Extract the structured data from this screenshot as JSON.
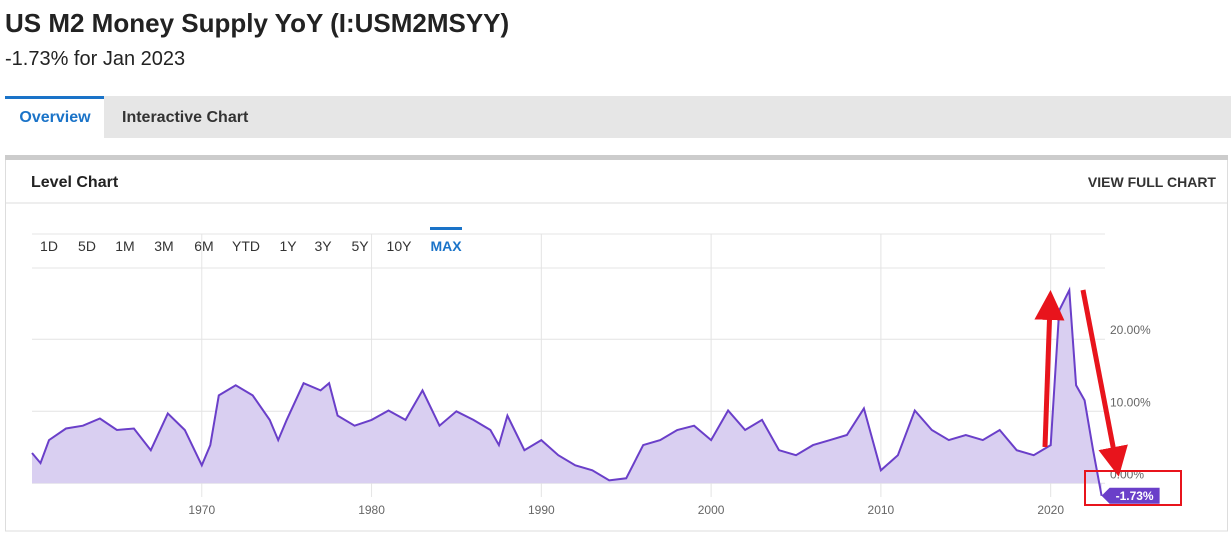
{
  "header": {
    "title": "US M2 Money Supply YoY (I:USM2MSYY)",
    "subtitle": "-1.73% for Jan 2023"
  },
  "tabs": [
    "Overview",
    "Interactive Chart"
  ],
  "panel": {
    "title": "Level Chart",
    "action": "VIEW FULL CHART"
  },
  "ranges": [
    "1D",
    "5D",
    "1M",
    "3M",
    "6M",
    "YTD",
    "1Y",
    "3Y",
    "5Y",
    "10Y",
    "MAX"
  ],
  "chart_data": {
    "type": "area",
    "color": "#6a3fc9",
    "fill": "#d9cff1",
    "x": [
      1960.0,
      1960.5,
      1961,
      1962,
      1963,
      1964,
      1965,
      1966,
      1967,
      1968,
      1969,
      1970,
      1970.5,
      1971,
      1972,
      1973,
      1974,
      1974.5,
      1975,
      1976,
      1977,
      1977.5,
      1978,
      1979,
      1980,
      1981,
      1982,
      1983,
      1984,
      1985,
      1986,
      1987,
      1987.5,
      1988,
      1989,
      1990,
      1991,
      1992,
      1993,
      1994,
      1995,
      1996,
      1997,
      1998,
      1999,
      2000,
      2001,
      2002,
      2003,
      2004,
      2005,
      2006,
      2007,
      2008,
      2009,
      2010,
      2011,
      2012,
      2013,
      2014,
      2015,
      2016,
      2017,
      2018,
      2019,
      2020,
      2020.5,
      2021.1,
      2021.5,
      2022,
      2022.5,
      2023.0
    ],
    "values": [
      4.2,
      2.8,
      6,
      7.6,
      8,
      9,
      7.4,
      7.6,
      4.6,
      9.7,
      7.4,
      2.5,
      5.3,
      12.2,
      13.6,
      12.2,
      8.8,
      6,
      8.8,
      13.9,
      12.9,
      13.9,
      9.4,
      8,
      8.8,
      10.1,
      8.8,
      12.9,
      8,
      10,
      8.8,
      7.4,
      5.3,
      9.4,
      4.6,
      6,
      3.9,
      2.5,
      1.8,
      0.4,
      0.7,
      5.3,
      6,
      7.4,
      8,
      6,
      10.1,
      7.4,
      8.8,
      4.6,
      3.9,
      5.3,
      6,
      6.7,
      10.4,
      1.8,
      3.9,
      10.1,
      7.4,
      6,
      6.7,
      6,
      7.4,
      4.6,
      3.9,
      5.3,
      24,
      26.8,
      13.6,
      11.5,
      4.6,
      -1.73
    ],
    "xlim": [
      1960,
      2023.2
    ],
    "xticks": [
      1970,
      1980,
      1990,
      2000,
      2010,
      2020
    ],
    "ylim": [
      -1.9,
      34.6
    ],
    "yticks": [
      {
        "value": 0,
        "label": "0.00%"
      },
      {
        "value": 10,
        "label": "10.00%"
      },
      {
        "value": 20,
        "label": "20.00%"
      }
    ],
    "grid": true,
    "annotation": {
      "x": 2023.0,
      "y": -1.73,
      "label": "-1.73%"
    }
  }
}
